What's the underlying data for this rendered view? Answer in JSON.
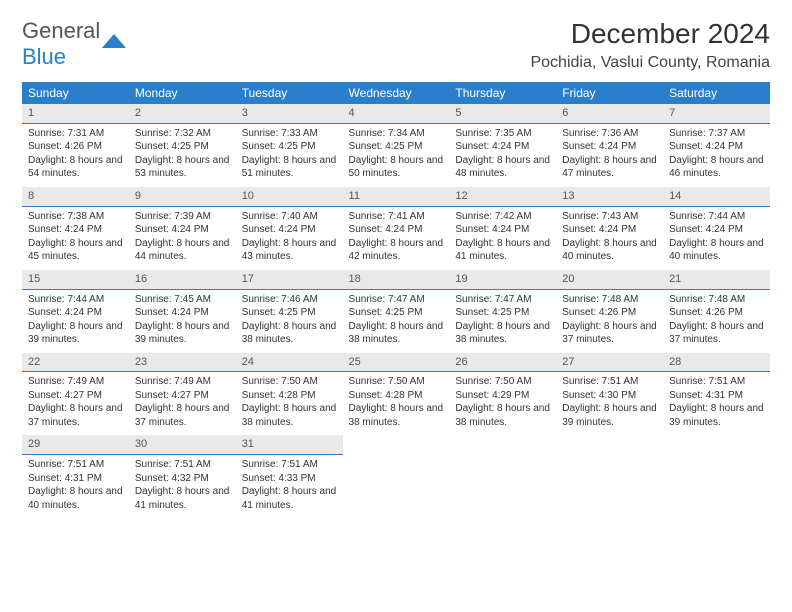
{
  "logo": {
    "text1": "General",
    "text2": "Blue"
  },
  "title": "December 2024",
  "location": "Pochidia, Vaslui County, Romania",
  "colors": {
    "header_bg": "#2a7fcb",
    "header_text": "#ffffff",
    "daynum_bg": "#e9e9e9",
    "border": "#2a7fcb",
    "body_text": "#333333",
    "logo_gray": "#555555",
    "logo_blue": "#2a7fcb"
  },
  "weekdays": [
    "Sunday",
    "Monday",
    "Tuesday",
    "Wednesday",
    "Thursday",
    "Friday",
    "Saturday"
  ],
  "rows": [
    [
      {
        "day": "1",
        "sunrise": "Sunrise: 7:31 AM",
        "sunset": "Sunset: 4:26 PM",
        "daylight": "Daylight: 8 hours and 54 minutes."
      },
      {
        "day": "2",
        "sunrise": "Sunrise: 7:32 AM",
        "sunset": "Sunset: 4:25 PM",
        "daylight": "Daylight: 8 hours and 53 minutes."
      },
      {
        "day": "3",
        "sunrise": "Sunrise: 7:33 AM",
        "sunset": "Sunset: 4:25 PM",
        "daylight": "Daylight: 8 hours and 51 minutes."
      },
      {
        "day": "4",
        "sunrise": "Sunrise: 7:34 AM",
        "sunset": "Sunset: 4:25 PM",
        "daylight": "Daylight: 8 hours and 50 minutes."
      },
      {
        "day": "5",
        "sunrise": "Sunrise: 7:35 AM",
        "sunset": "Sunset: 4:24 PM",
        "daylight": "Daylight: 8 hours and 48 minutes."
      },
      {
        "day": "6",
        "sunrise": "Sunrise: 7:36 AM",
        "sunset": "Sunset: 4:24 PM",
        "daylight": "Daylight: 8 hours and 47 minutes."
      },
      {
        "day": "7",
        "sunrise": "Sunrise: 7:37 AM",
        "sunset": "Sunset: 4:24 PM",
        "daylight": "Daylight: 8 hours and 46 minutes."
      }
    ],
    [
      {
        "day": "8",
        "sunrise": "Sunrise: 7:38 AM",
        "sunset": "Sunset: 4:24 PM",
        "daylight": "Daylight: 8 hours and 45 minutes."
      },
      {
        "day": "9",
        "sunrise": "Sunrise: 7:39 AM",
        "sunset": "Sunset: 4:24 PM",
        "daylight": "Daylight: 8 hours and 44 minutes."
      },
      {
        "day": "10",
        "sunrise": "Sunrise: 7:40 AM",
        "sunset": "Sunset: 4:24 PM",
        "daylight": "Daylight: 8 hours and 43 minutes."
      },
      {
        "day": "11",
        "sunrise": "Sunrise: 7:41 AM",
        "sunset": "Sunset: 4:24 PM",
        "daylight": "Daylight: 8 hours and 42 minutes."
      },
      {
        "day": "12",
        "sunrise": "Sunrise: 7:42 AM",
        "sunset": "Sunset: 4:24 PM",
        "daylight": "Daylight: 8 hours and 41 minutes."
      },
      {
        "day": "13",
        "sunrise": "Sunrise: 7:43 AM",
        "sunset": "Sunset: 4:24 PM",
        "daylight": "Daylight: 8 hours and 40 minutes."
      },
      {
        "day": "14",
        "sunrise": "Sunrise: 7:44 AM",
        "sunset": "Sunset: 4:24 PM",
        "daylight": "Daylight: 8 hours and 40 minutes."
      }
    ],
    [
      {
        "day": "15",
        "sunrise": "Sunrise: 7:44 AM",
        "sunset": "Sunset: 4:24 PM",
        "daylight": "Daylight: 8 hours and 39 minutes."
      },
      {
        "day": "16",
        "sunrise": "Sunrise: 7:45 AM",
        "sunset": "Sunset: 4:24 PM",
        "daylight": "Daylight: 8 hours and 39 minutes."
      },
      {
        "day": "17",
        "sunrise": "Sunrise: 7:46 AM",
        "sunset": "Sunset: 4:25 PM",
        "daylight": "Daylight: 8 hours and 38 minutes."
      },
      {
        "day": "18",
        "sunrise": "Sunrise: 7:47 AM",
        "sunset": "Sunset: 4:25 PM",
        "daylight": "Daylight: 8 hours and 38 minutes."
      },
      {
        "day": "19",
        "sunrise": "Sunrise: 7:47 AM",
        "sunset": "Sunset: 4:25 PM",
        "daylight": "Daylight: 8 hours and 38 minutes."
      },
      {
        "day": "20",
        "sunrise": "Sunrise: 7:48 AM",
        "sunset": "Sunset: 4:26 PM",
        "daylight": "Daylight: 8 hours and 37 minutes."
      },
      {
        "day": "21",
        "sunrise": "Sunrise: 7:48 AM",
        "sunset": "Sunset: 4:26 PM",
        "daylight": "Daylight: 8 hours and 37 minutes."
      }
    ],
    [
      {
        "day": "22",
        "sunrise": "Sunrise: 7:49 AM",
        "sunset": "Sunset: 4:27 PM",
        "daylight": "Daylight: 8 hours and 37 minutes."
      },
      {
        "day": "23",
        "sunrise": "Sunrise: 7:49 AM",
        "sunset": "Sunset: 4:27 PM",
        "daylight": "Daylight: 8 hours and 37 minutes."
      },
      {
        "day": "24",
        "sunrise": "Sunrise: 7:50 AM",
        "sunset": "Sunset: 4:28 PM",
        "daylight": "Daylight: 8 hours and 38 minutes."
      },
      {
        "day": "25",
        "sunrise": "Sunrise: 7:50 AM",
        "sunset": "Sunset: 4:28 PM",
        "daylight": "Daylight: 8 hours and 38 minutes."
      },
      {
        "day": "26",
        "sunrise": "Sunrise: 7:50 AM",
        "sunset": "Sunset: 4:29 PM",
        "daylight": "Daylight: 8 hours and 38 minutes."
      },
      {
        "day": "27",
        "sunrise": "Sunrise: 7:51 AM",
        "sunset": "Sunset: 4:30 PM",
        "daylight": "Daylight: 8 hours and 39 minutes."
      },
      {
        "day": "28",
        "sunrise": "Sunrise: 7:51 AM",
        "sunset": "Sunset: 4:31 PM",
        "daylight": "Daylight: 8 hours and 39 minutes."
      }
    ],
    [
      {
        "day": "29",
        "sunrise": "Sunrise: 7:51 AM",
        "sunset": "Sunset: 4:31 PM",
        "daylight": "Daylight: 8 hours and 40 minutes."
      },
      {
        "day": "30",
        "sunrise": "Sunrise: 7:51 AM",
        "sunset": "Sunset: 4:32 PM",
        "daylight": "Daylight: 8 hours and 41 minutes."
      },
      {
        "day": "31",
        "sunrise": "Sunrise: 7:51 AM",
        "sunset": "Sunset: 4:33 PM",
        "daylight": "Daylight: 8 hours and 41 minutes."
      },
      null,
      null,
      null,
      null
    ]
  ]
}
